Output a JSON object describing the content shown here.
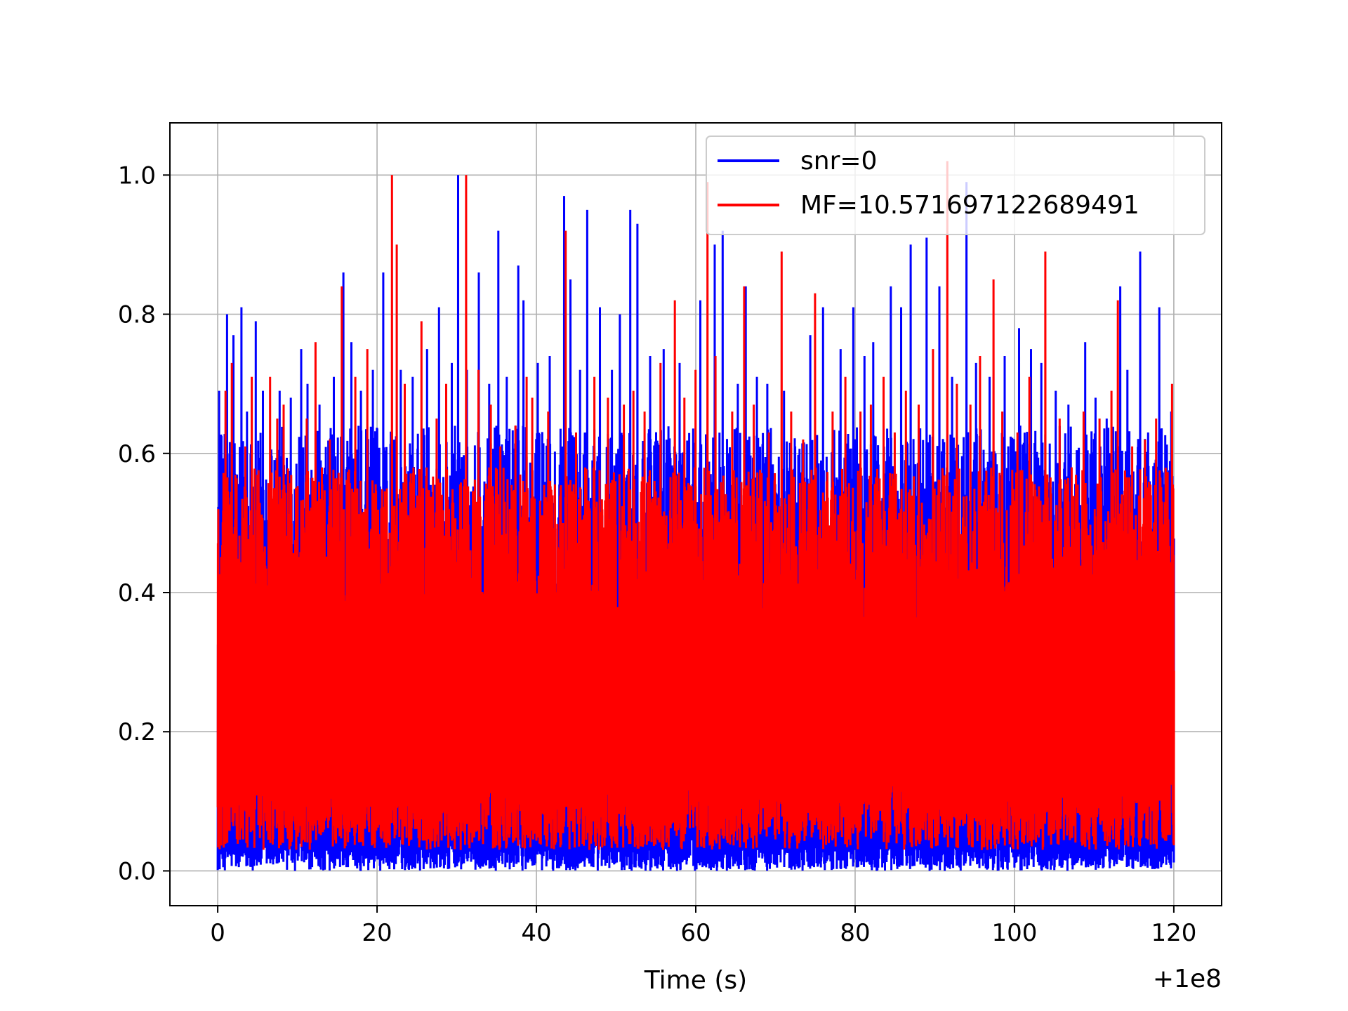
{
  "chart_data": {
    "type": "line",
    "title": "",
    "xlabel": "Time (s)",
    "ylabel": "",
    "x_offset_label": "+1e8",
    "xlim": [
      -6,
      126
    ],
    "ylim": [
      -0.05,
      1.075
    ],
    "x_ticks": [
      0,
      20,
      40,
      60,
      80,
      100,
      120
    ],
    "x_tick_labels": [
      "0",
      "20",
      "40",
      "60",
      "80",
      "100",
      "120"
    ],
    "y_ticks": [
      0.0,
      0.2,
      0.4,
      0.6,
      0.8,
      1.0
    ],
    "y_tick_labels": [
      "0.0",
      "0.2",
      "0.4",
      "0.6",
      "0.8",
      "1.0"
    ],
    "grid": true,
    "legend_position": "top-right",
    "series": [
      {
        "name": "snr=0",
        "color": "#0000ff",
        "x_range": [
          0,
          120
        ],
        "peaks": [
          {
            "x": 0.2,
            "y": 0.69
          },
          {
            "x": 0.8,
            "y": 0.59
          },
          {
            "x": 1.2,
            "y": 0.8
          },
          {
            "x": 2.0,
            "y": 0.77
          },
          {
            "x": 3.0,
            "y": 0.81
          },
          {
            "x": 3.7,
            "y": 0.66
          },
          {
            "x": 4.8,
            "y": 0.79
          },
          {
            "x": 5.7,
            "y": 0.69
          },
          {
            "x": 7.8,
            "y": 0.69
          },
          {
            "x": 9.2,
            "y": 0.68
          },
          {
            "x": 10.5,
            "y": 0.75
          },
          {
            "x": 11.3,
            "y": 0.7
          },
          {
            "x": 12.8,
            "y": 0.67
          },
          {
            "x": 14.6,
            "y": 0.71
          },
          {
            "x": 15.8,
            "y": 0.86
          },
          {
            "x": 16.8,
            "y": 0.76
          },
          {
            "x": 18.0,
            "y": 0.69
          },
          {
            "x": 19.5,
            "y": 0.72
          },
          {
            "x": 20.8,
            "y": 0.86
          },
          {
            "x": 23.0,
            "y": 0.72
          },
          {
            "x": 24.5,
            "y": 0.71
          },
          {
            "x": 26.3,
            "y": 0.75
          },
          {
            "x": 27.8,
            "y": 0.81
          },
          {
            "x": 29.4,
            "y": 0.73
          },
          {
            "x": 30.2,
            "y": 1.0
          },
          {
            "x": 31.3,
            "y": 0.72
          },
          {
            "x": 32.8,
            "y": 0.86
          },
          {
            "x": 34.1,
            "y": 0.7
          },
          {
            "x": 35.2,
            "y": 0.92
          },
          {
            "x": 36.3,
            "y": 0.71
          },
          {
            "x": 37.7,
            "y": 0.87
          },
          {
            "x": 38.4,
            "y": 0.82
          },
          {
            "x": 40.2,
            "y": 0.73
          },
          {
            "x": 41.7,
            "y": 0.74
          },
          {
            "x": 43.5,
            "y": 0.97
          },
          {
            "x": 44.3,
            "y": 0.85
          },
          {
            "x": 45.5,
            "y": 0.72
          },
          {
            "x": 46.4,
            "y": 0.95
          },
          {
            "x": 48.0,
            "y": 0.81
          },
          {
            "x": 49.5,
            "y": 0.72
          },
          {
            "x": 50.5,
            "y": 0.8
          },
          {
            "x": 51.8,
            "y": 0.95
          },
          {
            "x": 52.7,
            "y": 0.93
          },
          {
            "x": 54.3,
            "y": 0.74
          },
          {
            "x": 56.0,
            "y": 0.75
          },
          {
            "x": 58.0,
            "y": 0.73
          },
          {
            "x": 60.6,
            "y": 0.82
          },
          {
            "x": 62.4,
            "y": 0.9
          },
          {
            "x": 63.4,
            "y": 0.92
          },
          {
            "x": 65.3,
            "y": 0.7
          },
          {
            "x": 66.3,
            "y": 0.84
          },
          {
            "x": 67.7,
            "y": 0.71
          },
          {
            "x": 69.0,
            "y": 0.7
          },
          {
            "x": 71.1,
            "y": 0.69
          },
          {
            "x": 74.4,
            "y": 0.77
          },
          {
            "x": 76.0,
            "y": 0.81
          },
          {
            "x": 78.2,
            "y": 0.75
          },
          {
            "x": 79.8,
            "y": 0.81
          },
          {
            "x": 81.2,
            "y": 0.74
          },
          {
            "x": 82.3,
            "y": 0.76
          },
          {
            "x": 84.5,
            "y": 0.84
          },
          {
            "x": 85.8,
            "y": 0.81
          },
          {
            "x": 87.0,
            "y": 0.9
          },
          {
            "x": 89.0,
            "y": 0.91
          },
          {
            "x": 90.6,
            "y": 0.84
          },
          {
            "x": 92.2,
            "y": 0.71
          },
          {
            "x": 94.0,
            "y": 0.99
          },
          {
            "x": 95.2,
            "y": 0.73
          },
          {
            "x": 96.9,
            "y": 0.71
          },
          {
            "x": 98.8,
            "y": 0.74
          },
          {
            "x": 100.6,
            "y": 0.78
          },
          {
            "x": 102.1,
            "y": 0.75
          },
          {
            "x": 103.4,
            "y": 0.73
          },
          {
            "x": 105.2,
            "y": 0.69
          },
          {
            "x": 106.8,
            "y": 0.67
          },
          {
            "x": 108.9,
            "y": 0.76
          },
          {
            "x": 110.2,
            "y": 0.68
          },
          {
            "x": 111.6,
            "y": 0.65
          },
          {
            "x": 113.3,
            "y": 0.84
          },
          {
            "x": 114.2,
            "y": 0.72
          },
          {
            "x": 115.8,
            "y": 0.89
          },
          {
            "x": 116.8,
            "y": 0.63
          },
          {
            "x": 118.2,
            "y": 0.81
          },
          {
            "x": 119.7,
            "y": 0.66
          }
        ]
      },
      {
        "name": "MF=10.571697122689491",
        "color": "#ff0000",
        "x_range": [
          0,
          120
        ],
        "peaks": [
          {
            "x": 0.1,
            "y": 0.52
          },
          {
            "x": 1.0,
            "y": 0.69
          },
          {
            "x": 1.8,
            "y": 0.73
          },
          {
            "x": 3.5,
            "y": 0.61
          },
          {
            "x": 4.3,
            "y": 0.71
          },
          {
            "x": 6.6,
            "y": 0.71
          },
          {
            "x": 7.5,
            "y": 0.65
          },
          {
            "x": 8.3,
            "y": 0.67
          },
          {
            "x": 11.2,
            "y": 0.65
          },
          {
            "x": 12.3,
            "y": 0.76
          },
          {
            "x": 14.1,
            "y": 0.62
          },
          {
            "x": 15.6,
            "y": 0.84
          },
          {
            "x": 17.3,
            "y": 0.71
          },
          {
            "x": 18.8,
            "y": 0.75
          },
          {
            "x": 21.9,
            "y": 1.0
          },
          {
            "x": 22.5,
            "y": 0.9
          },
          {
            "x": 23.5,
            "y": 0.7
          },
          {
            "x": 25.6,
            "y": 0.79
          },
          {
            "x": 27.5,
            "y": 0.65
          },
          {
            "x": 28.7,
            "y": 0.7
          },
          {
            "x": 31.2,
            "y": 1.0
          },
          {
            "x": 32.7,
            "y": 0.72
          },
          {
            "x": 34.3,
            "y": 0.67
          },
          {
            "x": 35.5,
            "y": 0.61
          },
          {
            "x": 37.4,
            "y": 0.64
          },
          {
            "x": 38.8,
            "y": 0.71
          },
          {
            "x": 39.5,
            "y": 0.68
          },
          {
            "x": 41.5,
            "y": 0.66
          },
          {
            "x": 43.7,
            "y": 0.92
          },
          {
            "x": 45.0,
            "y": 0.63
          },
          {
            "x": 47.3,
            "y": 0.71
          },
          {
            "x": 49.0,
            "y": 0.68
          },
          {
            "x": 51.0,
            "y": 0.67
          },
          {
            "x": 52.2,
            "y": 0.69
          },
          {
            "x": 53.6,
            "y": 0.66
          },
          {
            "x": 55.6,
            "y": 0.73
          },
          {
            "x": 57.4,
            "y": 0.82
          },
          {
            "x": 58.6,
            "y": 0.68
          },
          {
            "x": 60.0,
            "y": 0.72
          },
          {
            "x": 61.5,
            "y": 0.99
          },
          {
            "x": 62.5,
            "y": 0.74
          },
          {
            "x": 64.6,
            "y": 0.66
          },
          {
            "x": 66.1,
            "y": 0.84
          },
          {
            "x": 67.3,
            "y": 0.67
          },
          {
            "x": 69.2,
            "y": 0.63
          },
          {
            "x": 70.8,
            "y": 0.89
          },
          {
            "x": 72.0,
            "y": 0.66
          },
          {
            "x": 73.5,
            "y": 0.62
          },
          {
            "x": 75.0,
            "y": 0.83
          },
          {
            "x": 77.2,
            "y": 0.66
          },
          {
            "x": 78.8,
            "y": 0.71
          },
          {
            "x": 80.7,
            "y": 0.66
          },
          {
            "x": 82.0,
            "y": 0.67
          },
          {
            "x": 83.6,
            "y": 0.71
          },
          {
            "x": 85.0,
            "y": 0.63
          },
          {
            "x": 86.4,
            "y": 0.69
          },
          {
            "x": 88.0,
            "y": 0.67
          },
          {
            "x": 89.8,
            "y": 0.75
          },
          {
            "x": 91.6,
            "y": 1.02
          },
          {
            "x": 92.8,
            "y": 0.7
          },
          {
            "x": 94.5,
            "y": 0.67
          },
          {
            "x": 95.7,
            "y": 0.74
          },
          {
            "x": 97.4,
            "y": 0.85
          },
          {
            "x": 98.5,
            "y": 0.66
          },
          {
            "x": 100.4,
            "y": 0.63
          },
          {
            "x": 101.9,
            "y": 0.71
          },
          {
            "x": 103.9,
            "y": 0.89
          },
          {
            "x": 105.7,
            "y": 0.65
          },
          {
            "x": 107.2,
            "y": 0.58
          },
          {
            "x": 108.7,
            "y": 0.66
          },
          {
            "x": 110.7,
            "y": 0.65
          },
          {
            "x": 112.2,
            "y": 0.69
          },
          {
            "x": 113.0,
            "y": 0.82
          },
          {
            "x": 114.8,
            "y": 0.61
          },
          {
            "x": 116.4,
            "y": 0.62
          },
          {
            "x": 117.8,
            "y": 0.65
          },
          {
            "x": 118.9,
            "y": 0.53
          },
          {
            "x": 119.8,
            "y": 0.7
          }
        ]
      }
    ]
  }
}
